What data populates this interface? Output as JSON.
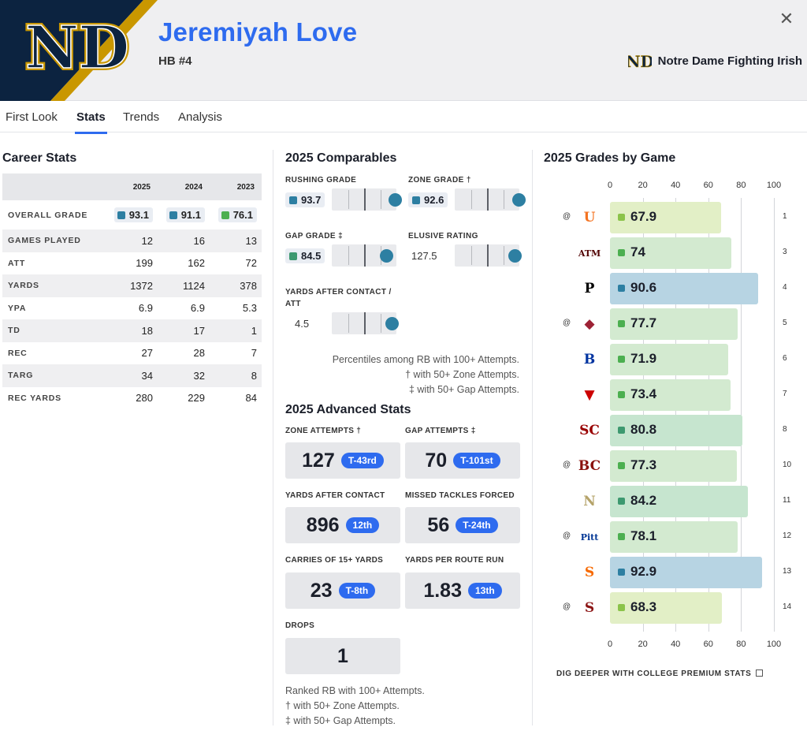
{
  "header": {
    "player_name": "Jeremiyah Love",
    "position": "HB #4",
    "team_name": "Notre Dame Fighting Irish",
    "colors": {
      "navy": "#0c2340",
      "gold": "#c99700",
      "accent": "#2e6bef"
    }
  },
  "close_icon": "close-icon",
  "tabs": [
    {
      "label": "First Look"
    },
    {
      "label": "Stats",
      "active": true
    },
    {
      "label": "Trends"
    },
    {
      "label": "Analysis"
    }
  ],
  "career": {
    "title": "Career Stats",
    "years": [
      "2025",
      "2024",
      "2023"
    ],
    "overall": {
      "label": "OVERALL GRADE",
      "values": [
        "93.1",
        "91.1",
        "76.1"
      ],
      "colors": [
        "#2d7fa2",
        "#2d7fa2",
        "#4caf50"
      ]
    },
    "rows": [
      {
        "label": "GAMES PLAYED",
        "values": [
          "12",
          "16",
          "13"
        ]
      },
      {
        "label": "ATT",
        "values": [
          "199",
          "162",
          "72"
        ]
      },
      {
        "label": "YARDS",
        "values": [
          "1372",
          "1124",
          "378"
        ]
      },
      {
        "label": "YPA",
        "values": [
          "6.9",
          "6.9",
          "5.3"
        ]
      },
      {
        "label": "TD",
        "values": [
          "18",
          "17",
          "1"
        ]
      },
      {
        "label": "REC",
        "values": [
          "27",
          "28",
          "7"
        ]
      },
      {
        "label": "TARG",
        "values": [
          "34",
          "32",
          "8"
        ]
      },
      {
        "label": "REC YARDS",
        "values": [
          "280",
          "229",
          "84"
        ]
      }
    ]
  },
  "comparables": {
    "title": "2025 Comparables",
    "items": [
      {
        "label": "RUSHING GRADE",
        "value": "93.7",
        "chip_color": "#2d7fa2",
        "percentile": 0.98
      },
      {
        "label": "ZONE GRADE †",
        "value": "92.6",
        "chip_color": "#2d7fa2",
        "percentile": 0.99
      },
      {
        "label": "GAP GRADE ‡",
        "value": "84.5",
        "chip_color": "#3d9970",
        "percentile": 0.84
      },
      {
        "label": "ELUSIVE RATING",
        "value": "127.5",
        "percentile": 0.93
      },
      {
        "label_line1": "YARDS AFTER CONTACT /",
        "label_line2": "ATT",
        "value": "4.5",
        "percentile": 0.93
      }
    ],
    "notes": [
      "Percentiles among RB with 100+ Attempts.",
      "† with 50+ Zone Attempts.",
      "‡ with 50+ Gap Attempts."
    ]
  },
  "advanced": {
    "title": "2025 Advanced Stats",
    "items": [
      {
        "label": "ZONE ATTEMPTS †",
        "value": "127",
        "rank": "T-43rd"
      },
      {
        "label": "GAP ATTEMPTS ‡",
        "value": "70",
        "rank": "T-101st"
      },
      {
        "label": "YARDS AFTER CONTACT",
        "value": "896",
        "rank": "12th"
      },
      {
        "label": "MISSED TACKLES FORCED",
        "value": "56",
        "rank": "T-24th"
      },
      {
        "label": "CARRIES OF 15+ YARDS",
        "value": "23",
        "rank": "T-8th"
      },
      {
        "label": "YARDS PER ROUTE RUN",
        "value": "1.83",
        "rank": "13th"
      },
      {
        "label": "DROPS",
        "value": "1"
      }
    ],
    "notes": [
      "Ranked RB with 100+ Attempts.",
      "† with 50+ Zone Attempts.",
      "‡ with 50+ Gap Attempts."
    ]
  },
  "grades_by_game": {
    "title": "2025 Grades by Game",
    "axis_ticks": [
      "0",
      "20",
      "40",
      "60",
      "80",
      "100"
    ],
    "games": [
      {
        "away": "@",
        "opponent_icon": "miami-hurricanes-logo",
        "icon_text": "U",
        "icon_color": "#f47321",
        "grade": "67.9",
        "week": "1"
      },
      {
        "away": "",
        "opponent_icon": "texas-am-logo",
        "icon_text": "ATM",
        "icon_color": "#500000",
        "grade": "74",
        "week": "3"
      },
      {
        "away": "",
        "opponent_icon": "purdue-logo",
        "icon_text": "P",
        "icon_color": "#000000",
        "grade": "90.6",
        "week": "4"
      },
      {
        "away": "@",
        "opponent_icon": "arkansas-razorback-logo",
        "icon_text": "◆",
        "icon_color": "#9d2235",
        "grade": "77.7",
        "week": "5"
      },
      {
        "away": "",
        "opponent_icon": "boise-state-logo",
        "icon_text": "B",
        "icon_color": "#0033a0",
        "grade": "71.9",
        "week": "6"
      },
      {
        "away": "",
        "opponent_icon": "nc-state-wolf-logo",
        "icon_text": "▼",
        "icon_color": "#cc0000",
        "grade": "73.4",
        "week": "7"
      },
      {
        "away": "",
        "opponent_icon": "usc-logo",
        "icon_text": "SC",
        "icon_color": "#990000",
        "grade": "80.8",
        "week": "8"
      },
      {
        "away": "@",
        "opponent_icon": "boston-college-logo",
        "icon_text": "BC",
        "icon_color": "#8a100b",
        "grade": "77.3",
        "week": "10"
      },
      {
        "away": "",
        "opponent_icon": "navy-logo",
        "icon_text": "N",
        "icon_color": "#b5a36a",
        "grade": "84.2",
        "week": "11"
      },
      {
        "away": "@",
        "opponent_icon": "pitt-logo",
        "icon_text": "Pitt",
        "icon_color": "#003594",
        "grade": "78.1",
        "week": "12"
      },
      {
        "away": "",
        "opponent_icon": "syracuse-logo",
        "icon_text": "S",
        "icon_color": "#f76900",
        "grade": "92.9",
        "week": "13"
      },
      {
        "away": "@",
        "opponent_icon": "stanford-logo",
        "icon_text": "S",
        "icon_color": "#8c1515",
        "grade": "68.3",
        "week": "14"
      }
    ],
    "grade_colors": {
      "elite": "#b7d4e3",
      "high": "#c6e5cf",
      "good": "#d3ead0",
      "avg": "#e2efc6"
    },
    "link_text": "DIG DEEPER WITH COLLEGE PREMIUM STATS"
  }
}
